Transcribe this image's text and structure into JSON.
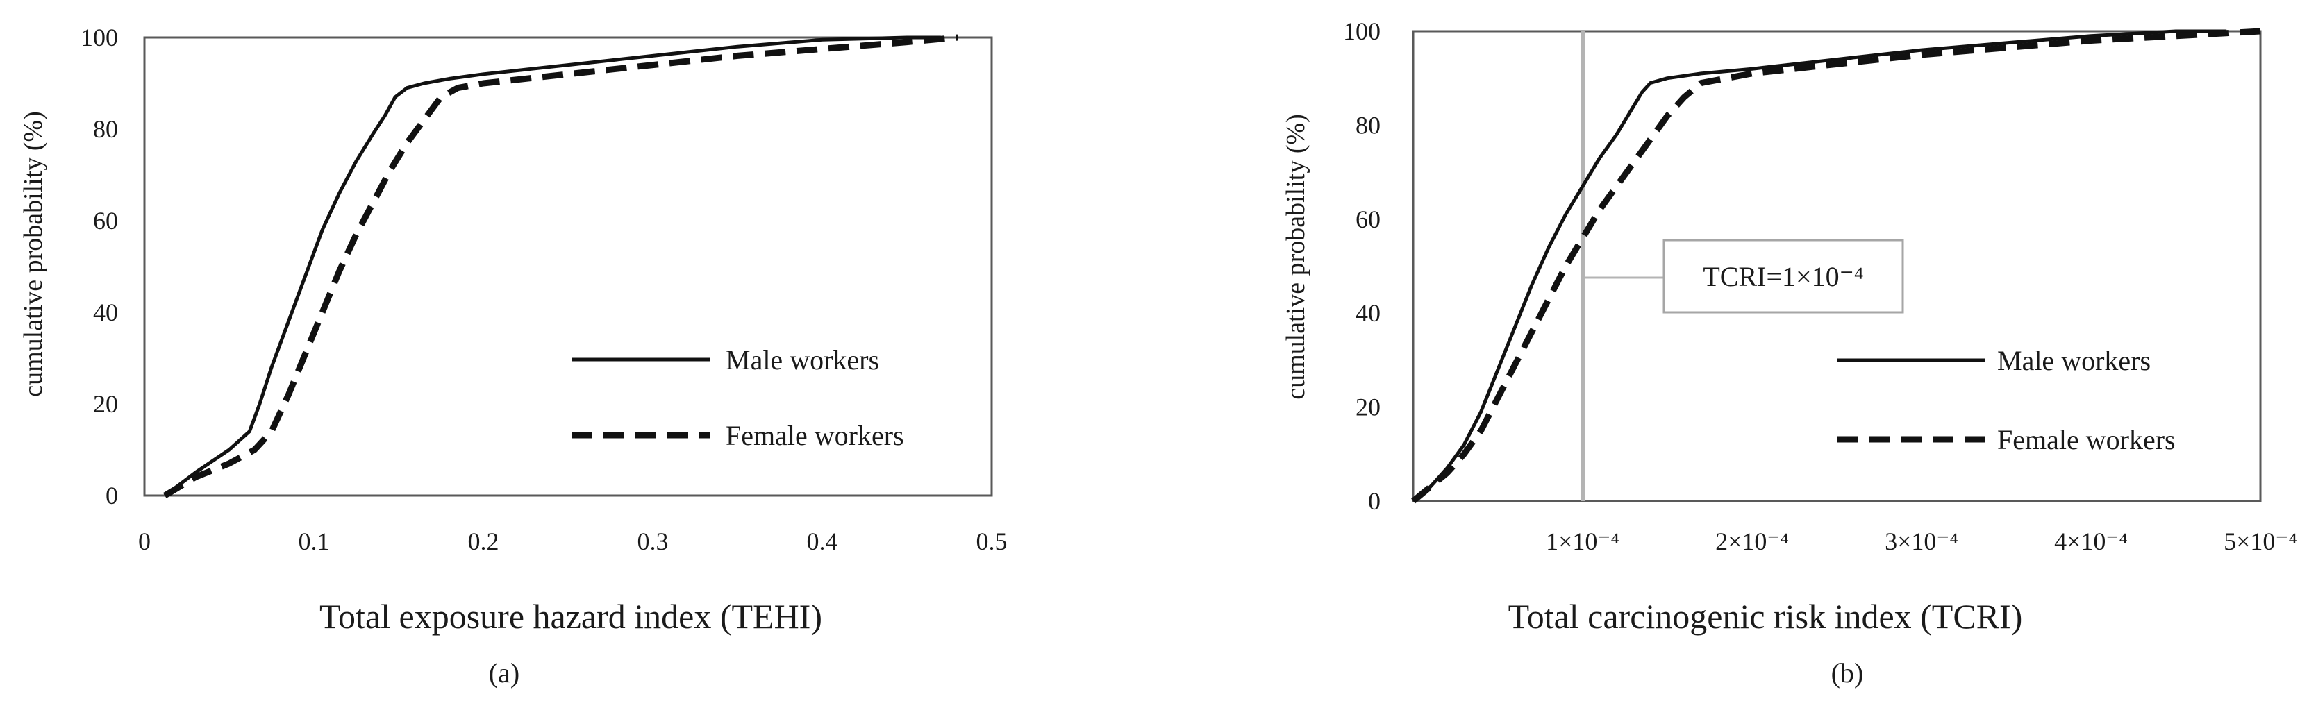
{
  "chart_data": [
    {
      "type": "line",
      "panel_label": "(a)",
      "xlabel": "Total exposure hazard index (TEHI)",
      "ylabel": "cumulative probability (%)",
      "xlim": [
        0,
        0.5
      ],
      "ylim": [
        0,
        100
      ],
      "x_ticks": [
        0,
        0.1,
        0.2,
        0.3,
        0.4,
        0.5
      ],
      "x_tick_labels": [
        "0",
        "0.1",
        "0.2",
        "0.3",
        "0.4",
        "0.5"
      ],
      "y_ticks": [
        0,
        20,
        40,
        60,
        80,
        100
      ],
      "y_tick_labels": [
        "0",
        "20",
        "40",
        "60",
        "80",
        "100"
      ],
      "grid": false,
      "legend_position": "right",
      "series": [
        {
          "name": "Male workers",
          "line_style": "solid",
          "x": [
            0.012,
            0.03,
            0.05,
            0.062,
            0.068,
            0.075,
            0.085,
            0.095,
            0.105,
            0.115,
            0.125,
            0.135,
            0.142,
            0.148,
            0.155,
            0.165,
            0.18,
            0.2,
            0.25,
            0.3,
            0.35,
            0.4,
            0.45,
            0.47
          ],
          "y": [
            0,
            5,
            10,
            14,
            20,
            28,
            38,
            48,
            58,
            66,
            73,
            79,
            83,
            87,
            89,
            90,
            91,
            92,
            94,
            96,
            98,
            99.5,
            100,
            100
          ]
        },
        {
          "name": "Female workers",
          "line_style": "dashed",
          "x": [
            0.012,
            0.03,
            0.05,
            0.065,
            0.075,
            0.085,
            0.095,
            0.105,
            0.115,
            0.125,
            0.135,
            0.145,
            0.155,
            0.165,
            0.175,
            0.185,
            0.2,
            0.25,
            0.3,
            0.35,
            0.4,
            0.45,
            0.48
          ],
          "y": [
            0,
            4,
            7,
            10,
            14,
            22,
            31,
            40,
            49,
            57,
            64,
            71,
            77,
            82,
            87,
            89,
            90,
            92,
            94,
            96,
            97.5,
            99,
            100
          ]
        }
      ]
    },
    {
      "type": "line",
      "panel_label": "(b)",
      "xlabel": "Total carcinogenic risk index (TCRI)",
      "ylabel": "cumulative probability (%)",
      "xlim": [
        0,
        0.0005
      ],
      "ylim": [
        0,
        100
      ],
      "x_ticks": [
        0.0001,
        0.0002,
        0.0003,
        0.0004,
        0.0005
      ],
      "x_tick_labels": [
        "1×10⁻⁴",
        "2×10⁻⁴",
        "3×10⁻⁴",
        "4×10⁻⁴",
        "5×10⁻⁴"
      ],
      "y_ticks": [
        0,
        20,
        40,
        60,
        80,
        100
      ],
      "y_tick_labels": [
        "0",
        "20",
        "40",
        "60",
        "80",
        "100"
      ],
      "grid": false,
      "legend_position": "right",
      "annotation": {
        "text": "TCRI=1×10⁻⁴",
        "x": 0.0001
      },
      "series": [
        {
          "name": "Male workers",
          "line_style": "solid",
          "x": [
            0,
            1e-05,
            2e-05,
            3e-05,
            4e-05,
            5e-05,
            6e-05,
            7e-05,
            8e-05,
            9e-05,
            0.0001,
            0.00011,
            0.00012,
            0.00013,
            0.000135,
            0.00014,
            0.00015,
            0.00017,
            0.0002,
            0.00025,
            0.0003,
            0.00035,
            0.0004,
            0.00045,
            0.00048
          ],
          "y": [
            0,
            3,
            7,
            12,
            19,
            28,
            37,
            46,
            54,
            61,
            67,
            73,
            78,
            84,
            87,
            89,
            90,
            91,
            92,
            94,
            96,
            97.5,
            99,
            100,
            100
          ]
        },
        {
          "name": "Female workers",
          "line_style": "dashed",
          "x": [
            0,
            1e-05,
            2e-05,
            3e-05,
            4e-05,
            5e-05,
            6e-05,
            7e-05,
            8e-05,
            9e-05,
            0.0001,
            0.00011,
            0.00012,
            0.00013,
            0.00014,
            0.00015,
            0.00016,
            0.00017,
            0.0002,
            0.00025,
            0.0003,
            0.00035,
            0.0004,
            0.00045,
            0.0005
          ],
          "y": [
            0,
            3,
            6,
            10,
            15,
            22,
            29,
            36,
            43,
            50,
            56,
            62,
            67,
            72,
            77,
            82,
            86,
            89,
            91,
            93,
            95,
            96.5,
            98,
            99,
            100
          ]
        }
      ]
    }
  ]
}
